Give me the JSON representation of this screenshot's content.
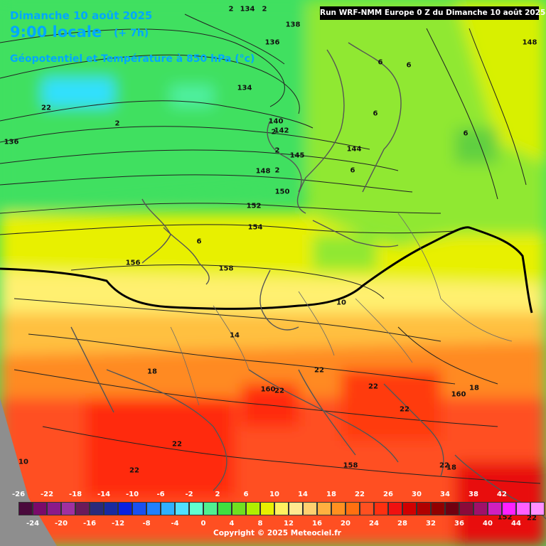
{
  "header": {
    "date": "Dimanche 10 août 2025",
    "local_time": "9:00 locale",
    "lead": "(+ 7h)",
    "variable": "Géopotentiel et Température à 850 hPa (°c)",
    "run": "Run WRF-NMM Europe 0 Z du Dimanche 10 août 2025"
  },
  "contour_labels": [
    {
      "text": "2"
    },
    {
      "text": "134"
    },
    {
      "text": "2"
    },
    {
      "text": "138"
    },
    {
      "text": "136"
    },
    {
      "text": "134"
    },
    {
      "text": "22"
    },
    {
      "text": "2"
    },
    {
      "text": "136"
    },
    {
      "text": "140"
    },
    {
      "text": "2"
    },
    {
      "text": "142"
    },
    {
      "text": "2"
    },
    {
      "text": "145"
    },
    {
      "text": "144"
    },
    {
      "text": "2"
    },
    {
      "text": "148"
    },
    {
      "text": "150"
    },
    {
      "text": "152"
    },
    {
      "text": "154"
    },
    {
      "text": "6"
    },
    {
      "text": "156"
    },
    {
      "text": "158"
    },
    {
      "text": "10"
    },
    {
      "text": "14"
    },
    {
      "text": "18"
    },
    {
      "text": "22"
    },
    {
      "text": "160"
    },
    {
      "text": "22"
    },
    {
      "text": "22"
    },
    {
      "text": "22"
    },
    {
      "text": "160"
    },
    {
      "text": "18"
    },
    {
      "text": "22"
    },
    {
      "text": "22"
    },
    {
      "text": "10"
    },
    {
      "text": "158"
    },
    {
      "text": "22"
    },
    {
      "text": "18"
    },
    {
      "text": "6"
    },
    {
      "text": "6"
    },
    {
      "text": "6"
    },
    {
      "text": "6"
    },
    {
      "text": "6"
    },
    {
      "text": "148"
    },
    {
      "text": "152"
    },
    {
      "text": "22"
    }
  ],
  "legend": {
    "upper_labels": [
      "-26",
      "-22",
      "-18",
      "-14",
      "-10",
      "-6",
      "-2",
      "2",
      "6",
      "10",
      "14",
      "18",
      "22",
      "26",
      "30",
      "34",
      "38",
      "42"
    ],
    "lower_labels": [
      "-24",
      "-20",
      "-16",
      "-12",
      "-8",
      "-4",
      "0",
      "4",
      "8",
      "12",
      "16",
      "20",
      "24",
      "28",
      "32",
      "36",
      "40",
      "44"
    ],
    "colors": [
      "#4a0a3c",
      "#7a0a6a",
      "#8a1a8a",
      "#a030a0",
      "#6a1a5a",
      "#2a2a7a",
      "#1a2aa0",
      "#0a20e0",
      "#1a50f0",
      "#2080ff",
      "#30b0ff",
      "#50e0ff",
      "#60ffd0",
      "#50f090",
      "#40e040",
      "#70e020",
      "#b0f000",
      "#e8f000",
      "#fff060",
      "#ffe890",
      "#ffd070",
      "#ffb040",
      "#ff9020",
      "#ff7010",
      "#ff5020",
      "#ff3010",
      "#f01010",
      "#d00000",
      "#b00000",
      "#900000",
      "#700010",
      "#8a0a3a",
      "#a0106a",
      "#d020c0",
      "#ff20ff",
      "#ff60ff",
      "#ff90ff"
    ]
  },
  "copyright": "Copyright © 2025 Meteociel.fr"
}
